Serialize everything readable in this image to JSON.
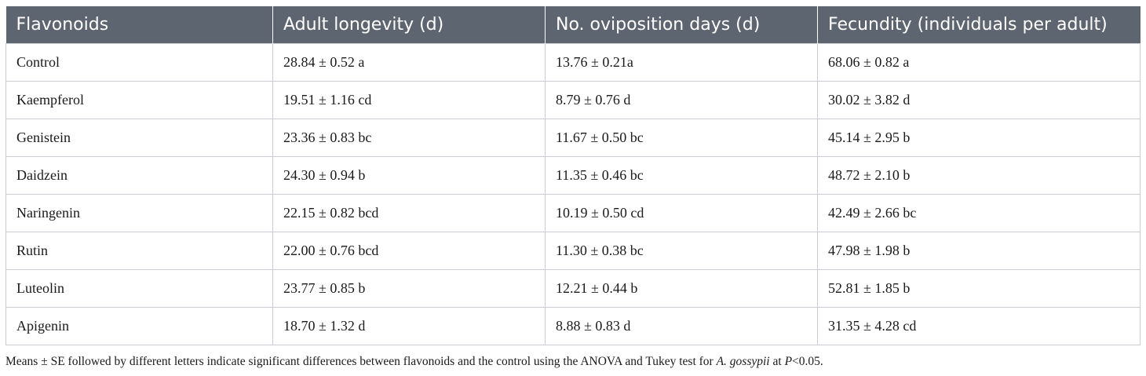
{
  "table": {
    "headers": [
      "Flavonoids",
      "Adult longevity (d)",
      "No. oviposition days (d)",
      "Fecundity (individuals per adult)"
    ],
    "rows": [
      [
        "Control",
        "28.84 ± 0.52 a",
        "13.76 ± 0.21a",
        "68.06 ± 0.82 a"
      ],
      [
        "Kaempferol",
        "19.51 ± 1.16 cd",
        "8.79 ± 0.76 d",
        "30.02 ± 3.82 d"
      ],
      [
        "Genistein",
        "23.36 ± 0.83 bc",
        "11.67 ± 0.50 bc",
        "45.14 ± 2.95 b"
      ],
      [
        "Daidzein",
        "24.30 ± 0.94 b",
        "11.35 ± 0.46 bc",
        "48.72 ± 2.10 b"
      ],
      [
        "Naringenin",
        "22.15 ± 0.82 bcd",
        "10.19 ± 0.50 cd",
        "42.49 ± 2.66 bc"
      ],
      [
        "Rutin",
        "22.00 ± 0.76 bcd",
        "11.30 ± 0.38 bc",
        "47.98 ± 1.98 b"
      ],
      [
        "Luteolin",
        "23.77 ± 0.85 b",
        "12.21 ± 0.44 b",
        "52.81 ± 1.85 b"
      ],
      [
        "Apigenin",
        "18.70 ± 1.32 d",
        "8.88 ± 0.83 d",
        "31.35 ± 4.28 cd"
      ]
    ]
  },
  "footnote": {
    "text_before": "Means ± SE followed by different letters indicate significant differences between flavonoids and the control using the ANOVA and Tukey test for ",
    "species": "A. gossypii",
    "text_mid": " at ",
    "p_symbol": "P",
    "text_after": "<0.05."
  },
  "colors": {
    "header_bg": "#5d6670",
    "header_text": "#ffffff",
    "grid_line": "#c9cdd2"
  }
}
